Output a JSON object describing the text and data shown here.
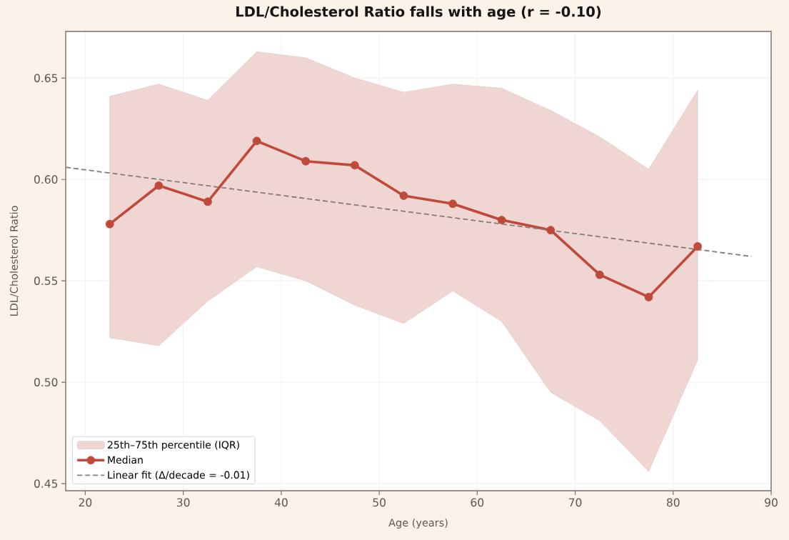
{
  "chart_data": {
    "type": "line",
    "title": "LDL/Cholesterol Ratio falls with age (r = -0.10)",
    "xlabel": "Age (years)",
    "ylabel": "LDL/Cholesterol Ratio",
    "x": [
      22.5,
      27.5,
      32.5,
      37.5,
      42.5,
      47.5,
      52.5,
      57.5,
      62.5,
      67.5,
      72.5,
      77.5,
      82.5
    ],
    "series": [
      {
        "name": "25th–75th percentile (IQR)",
        "type": "area",
        "color": "#efd6d3",
        "values": [
          null,
          null,
          null,
          null,
          null,
          null,
          null,
          null,
          null,
          null,
          null,
          null,
          null
        ],
        "lower": [
          0.522,
          0.518,
          0.54,
          0.557,
          0.55,
          0.538,
          0.529,
          0.545,
          0.53,
          0.495,
          0.481,
          0.456,
          0.511
        ],
        "upper": [
          0.641,
          0.647,
          0.639,
          0.663,
          0.66,
          0.65,
          0.643,
          0.647,
          0.645,
          0.634,
          0.621,
          0.605,
          0.644
        ]
      },
      {
        "name": "Median",
        "color": "#c0493c",
        "marker": "circle",
        "line_style": "solid",
        "values": [
          0.578,
          0.597,
          0.589,
          0.619,
          0.609,
          0.607,
          0.592,
          0.588,
          0.58,
          0.575,
          0.553,
          0.542,
          0.567
        ]
      },
      {
        "name": "Linear fit (Δ/decade = -0.01)",
        "color": "#857c79",
        "marker": "none",
        "line_style": "dashed",
        "x": [
          18,
          88
        ],
        "values": [
          0.606,
          0.562
        ]
      }
    ],
    "xlim": [
      18,
      90
    ],
    "ylim": [
      0.4465,
      0.673
    ],
    "xticks": [
      20,
      30,
      40,
      50,
      60,
      70,
      80,
      90
    ],
    "yticks": [
      0.45,
      {
        "value": 0.5,
        "label": "0.50"
      },
      0.55,
      {
        "value": 0.6,
        "label": "0.60"
      },
      0.65
    ],
    "grid": true,
    "legend": "bottom left"
  }
}
